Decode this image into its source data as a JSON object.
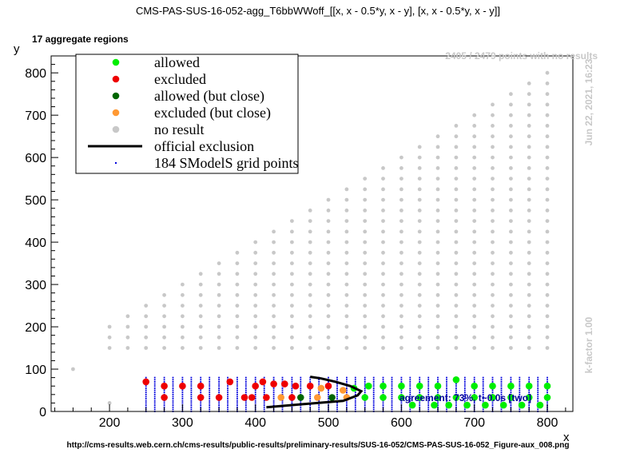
{
  "chart_data": {
    "type": "scatter",
    "title": "CMS-PAS-SUS-16-052-agg_T6bbWWoff_[[x, x - 0.5*y, x - y], [x, x - 0.5*y, x - y]]",
    "subtitle": "17 aggregate regions",
    "xlabel": "x",
    "ylabel": "y",
    "xlim": [
      120,
      835
    ],
    "ylim": [
      0,
      840
    ],
    "xticks": [
      200,
      300,
      400,
      500,
      600,
      700,
      800
    ],
    "yticks": [
      0,
      100,
      200,
      300,
      400,
      500,
      600,
      700,
      800
    ],
    "grid": false,
    "legend_position": "top-left",
    "legend": [
      {
        "key": "allowed",
        "label": "allowed",
        "color": "#00ee00",
        "marker": "dot"
      },
      {
        "key": "excluded",
        "label": "excluded",
        "color": "#ee0000",
        "marker": "dot"
      },
      {
        "key": "allowed_close",
        "label": "allowed (but close)",
        "color": "#006600",
        "marker": "dot"
      },
      {
        "key": "excluded_close",
        "label": "excluded (but close)",
        "color": "#ff9933",
        "marker": "dot"
      },
      {
        "key": "no_result",
        "label": "no result",
        "color": "#c8c8c8",
        "marker": "dot"
      },
      {
        "key": "official",
        "label": "official exclusion",
        "color": "#000000",
        "marker": "line"
      },
      {
        "key": "grid_points",
        "label": "184 SModelS grid points",
        "color": "#0000dd",
        "marker": "small-dot"
      }
    ],
    "no_result_grid": {
      "x_start": 200,
      "x_end": 800,
      "x_step": 25,
      "y_bottom": 150,
      "y_step": 25,
      "top_offset": 0
    },
    "extra_no_result_points": [
      [
        150,
        100
      ],
      [
        200,
        20
      ]
    ],
    "low_dm_points": [
      {
        "x": 250,
        "y": 70,
        "status": "excluded"
      },
      {
        "x": 275,
        "y": 33,
        "status": "excluded"
      },
      {
        "x": 275,
        "y": 60,
        "status": "excluded"
      },
      {
        "x": 300,
        "y": 60,
        "status": "excluded"
      },
      {
        "x": 325,
        "y": 33,
        "status": "excluded"
      },
      {
        "x": 325,
        "y": 60,
        "status": "excluded"
      },
      {
        "x": 350,
        "y": 33,
        "status": "excluded"
      },
      {
        "x": 365,
        "y": 70,
        "status": "excluded"
      },
      {
        "x": 385,
        "y": 33,
        "status": "excluded"
      },
      {
        "x": 395,
        "y": 33,
        "status": "excluded"
      },
      {
        "x": 400,
        "y": 60,
        "status": "excluded"
      },
      {
        "x": 410,
        "y": 70,
        "status": "excluded"
      },
      {
        "x": 415,
        "y": 33,
        "status": "excluded"
      },
      {
        "x": 425,
        "y": 65,
        "status": "excluded"
      },
      {
        "x": 435,
        "y": 33,
        "status": "excluded_close"
      },
      {
        "x": 440,
        "y": 65,
        "status": "excluded"
      },
      {
        "x": 450,
        "y": 33,
        "status": "excluded"
      },
      {
        "x": 455,
        "y": 60,
        "status": "excluded"
      },
      {
        "x": 462,
        "y": 33,
        "status": "allowed_close"
      },
      {
        "x": 475,
        "y": 60,
        "status": "excluded"
      },
      {
        "x": 485,
        "y": 33,
        "status": "excluded_close"
      },
      {
        "x": 490,
        "y": 55,
        "status": "excluded_close"
      },
      {
        "x": 500,
        "y": 60,
        "status": "excluded"
      },
      {
        "x": 505,
        "y": 33,
        "status": "allowed_close"
      },
      {
        "x": 520,
        "y": 50,
        "status": "excluded_close"
      },
      {
        "x": 525,
        "y": 33,
        "status": "excluded_close"
      },
      {
        "x": 535,
        "y": 55,
        "status": "allowed"
      },
      {
        "x": 550,
        "y": 33,
        "status": "allowed"
      },
      {
        "x": 555,
        "y": 60,
        "status": "allowed"
      },
      {
        "x": 575,
        "y": 33,
        "status": "allowed"
      },
      {
        "x": 575,
        "y": 60,
        "status": "allowed"
      },
      {
        "x": 600,
        "y": 33,
        "status": "allowed"
      },
      {
        "x": 600,
        "y": 60,
        "status": "allowed"
      },
      {
        "x": 615,
        "y": 15,
        "status": "allowed"
      },
      {
        "x": 625,
        "y": 33,
        "status": "allowed"
      },
      {
        "x": 625,
        "y": 60,
        "status": "allowed"
      },
      {
        "x": 645,
        "y": 15,
        "status": "allowed"
      },
      {
        "x": 650,
        "y": 33,
        "status": "allowed"
      },
      {
        "x": 650,
        "y": 60,
        "status": "allowed"
      },
      {
        "x": 665,
        "y": 15,
        "status": "allowed"
      },
      {
        "x": 675,
        "y": 33,
        "status": "allowed"
      },
      {
        "x": 675,
        "y": 75,
        "status": "allowed"
      },
      {
        "x": 690,
        "y": 15,
        "status": "allowed"
      },
      {
        "x": 700,
        "y": 33,
        "status": "allowed"
      },
      {
        "x": 700,
        "y": 60,
        "status": "allowed"
      },
      {
        "x": 715,
        "y": 15,
        "status": "allowed"
      },
      {
        "x": 725,
        "y": 33,
        "status": "allowed"
      },
      {
        "x": 725,
        "y": 60,
        "status": "allowed"
      },
      {
        "x": 740,
        "y": 15,
        "status": "allowed"
      },
      {
        "x": 750,
        "y": 33,
        "status": "allowed"
      },
      {
        "x": 750,
        "y": 60,
        "status": "allowed"
      },
      {
        "x": 765,
        "y": 15,
        "status": "allowed"
      },
      {
        "x": 775,
        "y": 33,
        "status": "allowed"
      },
      {
        "x": 775,
        "y": 60,
        "status": "allowed"
      },
      {
        "x": 790,
        "y": 15,
        "status": "allowed"
      },
      {
        "x": 800,
        "y": 33,
        "status": "allowed"
      },
      {
        "x": 800,
        "y": 60,
        "status": "allowed"
      }
    ],
    "grid_point_columns": {
      "x_values": [
        250,
        262,
        275,
        287,
        300,
        312,
        325,
        337,
        350,
        362,
        375,
        387,
        400,
        412,
        425,
        437,
        450,
        462,
        475,
        487,
        500,
        512,
        525,
        537,
        550,
        562,
        575,
        587,
        600,
        612,
        625,
        637,
        650,
        662,
        675,
        687,
        700,
        712,
        725,
        737,
        750,
        762,
        775,
        787,
        800
      ],
      "y_from": 0,
      "y_to": 80,
      "y_step": 5
    },
    "official_exclusion": [
      [
        415,
        10
      ],
      [
        470,
        18
      ],
      [
        520,
        25
      ],
      [
        540,
        38
      ],
      [
        545,
        48
      ],
      [
        530,
        60
      ],
      [
        510,
        70
      ],
      [
        490,
        78
      ],
      [
        475,
        82
      ]
    ],
    "annotations": {
      "no_results": "2405 / 2479 points with no results",
      "date": "Jun 22, 2021, 16:23",
      "kfactor": "k-factor 1.00",
      "agreement": "agreement: 73%, t~0.0s [two]",
      "url": "http://cms-results.web.cern.ch/cms-results/public-results/preliminary-results/SUS-16-052/CMS-PAS-SUS-16-052_Figure-aux_008.png"
    }
  }
}
